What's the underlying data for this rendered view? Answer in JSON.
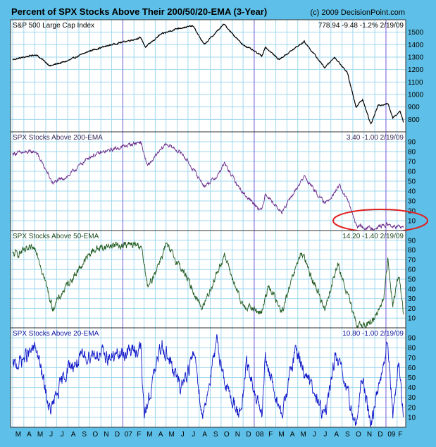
{
  "header": {
    "title": "Percent of SPX Stocks Above Their 200/50/20-EMA (3-Year)",
    "copyright": "(c) 2009 DecisionPoint.com"
  },
  "colors": {
    "background": "#5ec0e8",
    "grid": "#9fd8ee",
    "price_line": "#000000",
    "ema200_line": "#6a2a8a",
    "ema50_line": "#1f5a1f",
    "ema20_line": "#1018c8",
    "year_marker": "#7b5bd6",
    "annotation_circle": "#e02020"
  },
  "chart_data": [
    {
      "type": "line",
      "title": "S&P 500 Large Cap Index",
      "stats": "778.94  -9.48  -1.2%  2/19/09",
      "yticks": [
        800,
        900,
        1000,
        1100,
        1200,
        1300,
        1400,
        1500
      ],
      "ylim": [
        700,
        1600
      ],
      "x_start": "2006-03-01",
      "x_end": "2009-02-19",
      "knots": [
        [
          "2006-03-01",
          1280
        ],
        [
          "2006-05-05",
          1320
        ],
        [
          "2006-06-13",
          1230
        ],
        [
          "2006-08-01",
          1270
        ],
        [
          "2006-10-01",
          1350
        ],
        [
          "2006-12-01",
          1400
        ],
        [
          "2007-02-20",
          1455
        ],
        [
          "2007-03-05",
          1380
        ],
        [
          "2007-04-15",
          1480
        ],
        [
          "2007-06-01",
          1530
        ],
        [
          "2007-07-15",
          1550
        ],
        [
          "2007-08-15",
          1400
        ],
        [
          "2007-10-09",
          1565
        ],
        [
          "2007-11-26",
          1410
        ],
        [
          "2008-01-22",
          1310
        ],
        [
          "2008-02-01",
          1380
        ],
        [
          "2008-03-10",
          1280
        ],
        [
          "2008-05-19",
          1425
        ],
        [
          "2008-07-15",
          1215
        ],
        [
          "2008-08-11",
          1300
        ],
        [
          "2008-09-15",
          1180
        ],
        [
          "2008-10-10",
          900
        ],
        [
          "2008-10-28",
          960
        ],
        [
          "2008-11-20",
          760
        ],
        [
          "2008-12-10",
          910
        ],
        [
          "2009-01-06",
          930
        ],
        [
          "2009-01-20",
          810
        ],
        [
          "2009-02-09",
          870
        ],
        [
          "2009-02-19",
          779
        ]
      ]
    },
    {
      "type": "line",
      "title": "SPX Stocks Above 200-EMA",
      "stats": "3.40  -1.00  2/19/09",
      "yticks": [
        10,
        20,
        30,
        40,
        50,
        60,
        70,
        80,
        90
      ],
      "ylim": [
        0,
        100
      ],
      "x_start": "2006-03-01",
      "x_end": "2009-02-19",
      "knots": [
        [
          "2006-03-01",
          78
        ],
        [
          "2006-05-05",
          80
        ],
        [
          "2006-06-20",
          48
        ],
        [
          "2006-08-01",
          55
        ],
        [
          "2006-10-01",
          75
        ],
        [
          "2006-12-01",
          82
        ],
        [
          "2007-02-20",
          90
        ],
        [
          "2007-03-10",
          65
        ],
        [
          "2007-05-01",
          88
        ],
        [
          "2007-06-15",
          78
        ],
        [
          "2007-08-16",
          45
        ],
        [
          "2007-09-20",
          55
        ],
        [
          "2007-10-10",
          68
        ],
        [
          "2007-11-26",
          40
        ],
        [
          "2008-01-22",
          20
        ],
        [
          "2008-02-01",
          38
        ],
        [
          "2008-03-17",
          18
        ],
        [
          "2008-05-19",
          55
        ],
        [
          "2008-07-15",
          27
        ],
        [
          "2008-08-25",
          45
        ],
        [
          "2008-09-20",
          28
        ],
        [
          "2008-10-10",
          5
        ],
        [
          "2008-11-20",
          2
        ],
        [
          "2009-01-06",
          6
        ],
        [
          "2009-01-20",
          4
        ],
        [
          "2009-02-19",
          3.4
        ]
      ],
      "annotations": [
        "red-ellipse-around-late-2008-lows"
      ]
    },
    {
      "type": "line",
      "title": "SPX Stocks Above 50-EMA",
      "stats": "14.20  -1.40  2/19/09",
      "yticks": [
        10,
        20,
        30,
        40,
        50,
        60,
        70,
        80,
        90
      ],
      "ylim": [
        0,
        100
      ],
      "x_start": "2006-03-01",
      "x_end": "2009-02-19",
      "knots": [
        [
          "2006-03-01",
          75
        ],
        [
          "2006-05-05",
          82
        ],
        [
          "2006-06-20",
          20
        ],
        [
          "2006-08-01",
          45
        ],
        [
          "2006-10-10",
          80
        ],
        [
          "2006-12-01",
          85
        ],
        [
          "2007-02-20",
          85
        ],
        [
          "2007-03-12",
          40
        ],
        [
          "2007-05-01",
          85
        ],
        [
          "2007-06-15",
          60
        ],
        [
          "2007-08-10",
          20
        ],
        [
          "2007-10-10",
          75
        ],
        [
          "2007-11-26",
          25
        ],
        [
          "2008-01-22",
          15
        ],
        [
          "2008-02-10",
          45
        ],
        [
          "2008-03-17",
          15
        ],
        [
          "2008-05-10",
          78
        ],
        [
          "2008-07-15",
          20
        ],
        [
          "2008-08-20",
          65
        ],
        [
          "2008-09-20",
          30
        ],
        [
          "2008-10-10",
          3
        ],
        [
          "2008-11-20",
          4
        ],
        [
          "2008-12-26",
          30
        ],
        [
          "2009-01-06",
          70
        ],
        [
          "2009-01-20",
          25
        ],
        [
          "2009-02-06",
          55
        ],
        [
          "2009-02-19",
          14.2
        ]
      ]
    },
    {
      "type": "line",
      "title": "SPX Stocks Above 20-EMA",
      "stats": "10.80  -1.00  2/19/09",
      "yticks": [
        10,
        20,
        30,
        40,
        50,
        60,
        70,
        80,
        90
      ],
      "ylim": [
        0,
        100
      ],
      "x_start": "2006-03-01",
      "x_end": "2009-02-19",
      "knots": [
        [
          "2006-03-01",
          60
        ],
        [
          "2006-05-05",
          80
        ],
        [
          "2006-06-13",
          15
        ],
        [
          "2006-08-01",
          60
        ],
        [
          "2006-10-10",
          75
        ],
        [
          "2006-12-01",
          70
        ],
        [
          "2007-02-20",
          80
        ],
        [
          "2007-03-01",
          10
        ],
        [
          "2007-04-20",
          85
        ],
        [
          "2007-06-10",
          40
        ],
        [
          "2007-07-20",
          75
        ],
        [
          "2007-08-10",
          10
        ],
        [
          "2007-09-20",
          85
        ],
        [
          "2007-10-15",
          40
        ],
        [
          "2007-11-26",
          10
        ],
        [
          "2007-12-10",
          65
        ],
        [
          "2008-01-22",
          8
        ],
        [
          "2008-02-01",
          70
        ],
        [
          "2008-03-17",
          10
        ],
        [
          "2008-04-25",
          80
        ],
        [
          "2008-06-01",
          45
        ],
        [
          "2008-07-15",
          10
        ],
        [
          "2008-08-15",
          75
        ],
        [
          "2008-09-10",
          40
        ],
        [
          "2008-10-10",
          2
        ],
        [
          "2008-10-28",
          50
        ],
        [
          "2008-11-20",
          3
        ],
        [
          "2009-01-06",
          88
        ],
        [
          "2009-01-20",
          10
        ],
        [
          "2009-02-06",
          65
        ],
        [
          "2009-02-19",
          10.8
        ]
      ]
    }
  ],
  "x_axis": {
    "months": [
      "M",
      "A",
      "M",
      "J",
      "J",
      "A",
      "S",
      "O",
      "N",
      "D",
      "07",
      "F",
      "M",
      "A",
      "M",
      "J",
      "J",
      "A",
      "S",
      "O",
      "N",
      "D",
      "08",
      "F",
      "M",
      "A",
      "M",
      "J",
      "J",
      "A",
      "S",
      "O",
      "N",
      "D",
      "09",
      "F"
    ]
  }
}
